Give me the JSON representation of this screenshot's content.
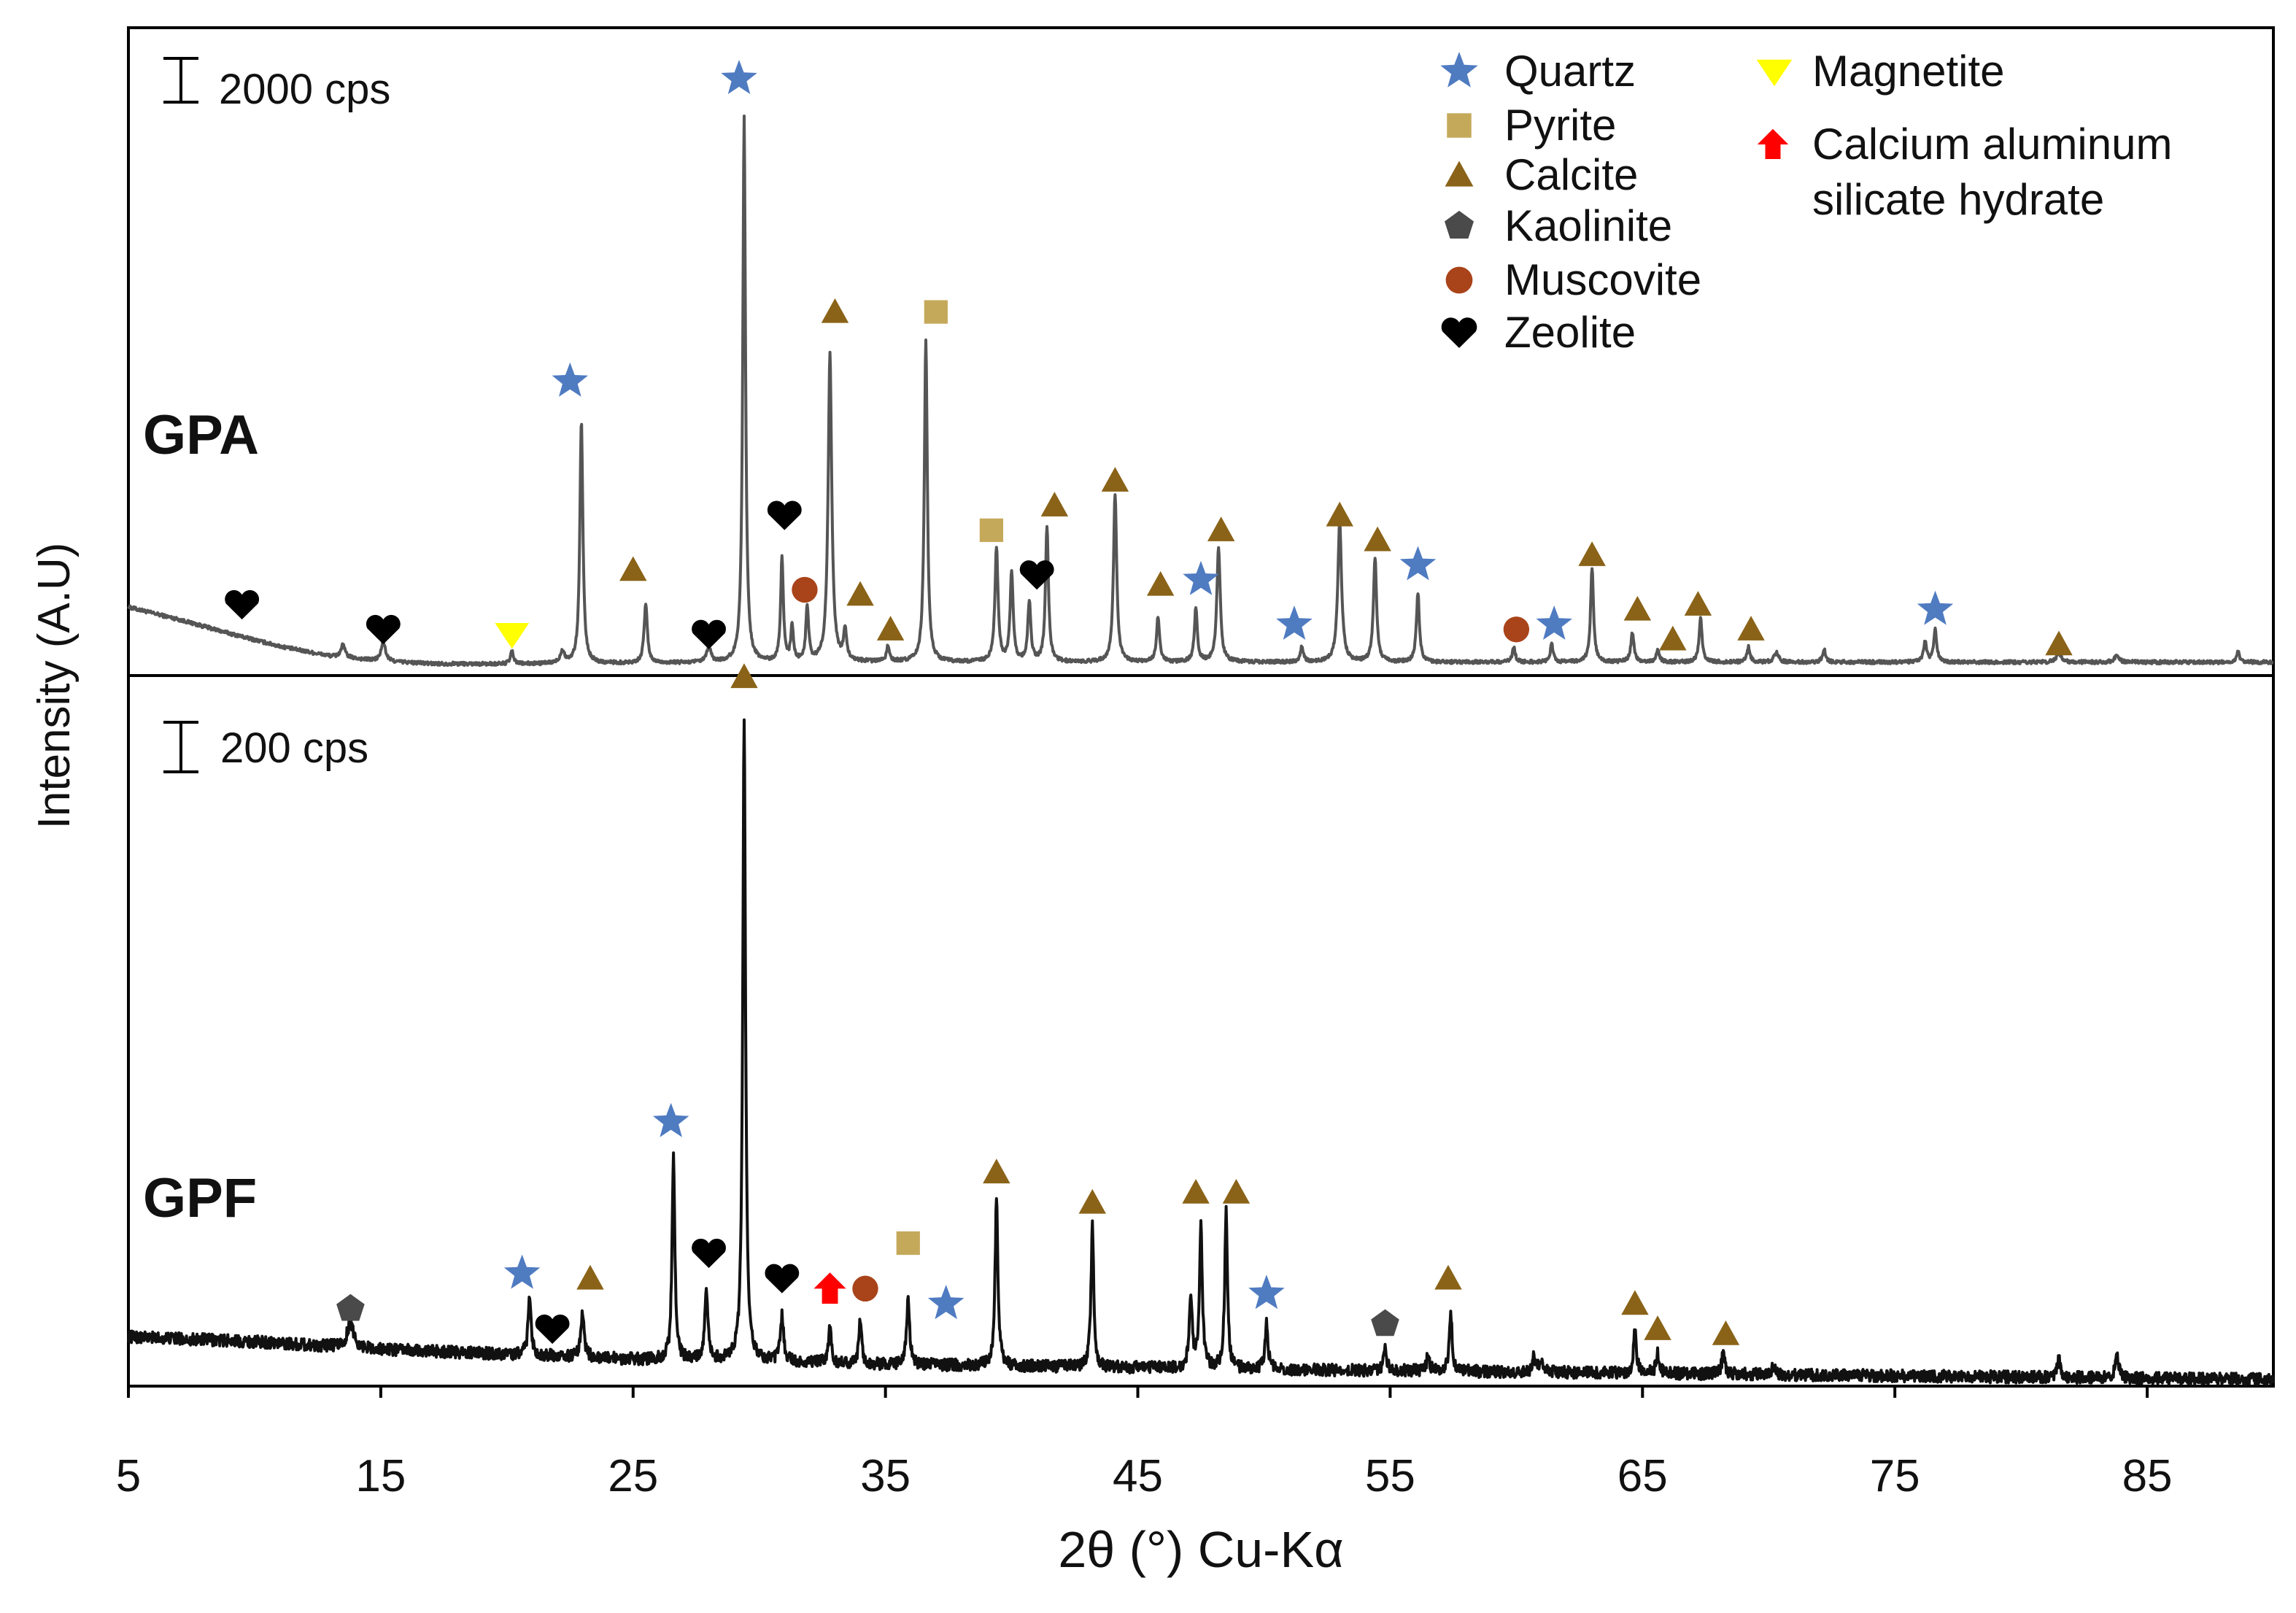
{
  "chart_data": {
    "type": "line",
    "title": "",
    "xlabel": "2θ (°) Cu-Kα",
    "ylabel": "Intensity (A.U)",
    "xlim": [
      5,
      90
    ],
    "x_ticks": [
      5,
      15,
      25,
      35,
      45,
      55,
      65,
      75,
      85
    ],
    "x_tick_labels": [
      "5",
      "15",
      "25",
      "35",
      "45",
      "55",
      "65",
      "75",
      "85"
    ],
    "phases": [
      {
        "key": "quartz",
        "name": "Quartz",
        "marker": "star",
        "color": "#4f7bc1"
      },
      {
        "key": "pyrite",
        "name": "Pyrite",
        "marker": "square",
        "color": "#c5a95a"
      },
      {
        "key": "calcite",
        "name": "Calcite",
        "marker": "triangle",
        "color": "#8a6318"
      },
      {
        "key": "kaolinite",
        "name": "Kaolinite",
        "marker": "pentagon",
        "color": "#4a4a4a"
      },
      {
        "key": "muscovite",
        "name": "Muscovite",
        "marker": "circle",
        "color": "#a9431a"
      },
      {
        "key": "zeolite",
        "name": "Zeolite",
        "marker": "heart",
        "color": "#000000"
      },
      {
        "key": "magnetite",
        "name": "Magnetite",
        "marker": "triangle-down",
        "color": "#ffff00"
      },
      {
        "key": "cash",
        "name": "Calcium aluminum silicate hydrate",
        "name_lines": [
          "Calcium aluminum",
          "silicate hydrate"
        ],
        "marker": "arrow-up",
        "color": "#ff0000"
      }
    ],
    "panels": [
      {
        "id": "gpa",
        "label": "GPA",
        "scale_bar": "2000 cps",
        "ylim": [
          0,
          130
        ],
        "line_color": "#555555",
        "baseline": [
          [
            5,
            13.5
          ],
          [
            7,
            11
          ],
          [
            9,
            8.2
          ],
          [
            11,
            5.6
          ],
          [
            13,
            3.6
          ],
          [
            15,
            2.6
          ],
          [
            17,
            2.1
          ],
          [
            20,
            2.0
          ],
          [
            25,
            2.2
          ],
          [
            35,
            2.4
          ],
          [
            50,
            2.4
          ],
          [
            70,
            2.4
          ],
          [
            90,
            2.4
          ]
        ],
        "peaks": [
          {
            "x": 13.5,
            "h": 2.5,
            "w": 0.2
          },
          {
            "x": 15.1,
            "h": 4.0,
            "w": 0.2
          },
          {
            "x": 20.2,
            "h": 2.5,
            "w": 0.15
          },
          {
            "x": 22.2,
            "h": 2.5,
            "w": 0.2
          },
          {
            "x": 22.95,
            "h": 49,
            "w": 0.14
          },
          {
            "x": 25.5,
            "h": 12,
            "w": 0.15
          },
          {
            "x": 28.0,
            "h": 3,
            "w": 0.2
          },
          {
            "x": 29.4,
            "h": 110,
            "w": 0.13
          },
          {
            "x": 30.9,
            "h": 21,
            "w": 0.13
          },
          {
            "x": 31.3,
            "h": 7,
            "w": 0.12
          },
          {
            "x": 31.9,
            "h": 11,
            "w": 0.13
          },
          {
            "x": 32.8,
            "h": 62,
            "w": 0.17
          },
          {
            "x": 33.4,
            "h": 6,
            "w": 0.15
          },
          {
            "x": 35.1,
            "h": 3,
            "w": 0.15
          },
          {
            "x": 36.6,
            "h": 65,
            "w": 0.14
          },
          {
            "x": 39.4,
            "h": 23,
            "w": 0.15
          },
          {
            "x": 40.0,
            "h": 18,
            "w": 0.14
          },
          {
            "x": 40.7,
            "h": 12,
            "w": 0.14
          },
          {
            "x": 41.4,
            "h": 27,
            "w": 0.14
          },
          {
            "x": 44.1,
            "h": 34,
            "w": 0.15
          },
          {
            "x": 45.8,
            "h": 9,
            "w": 0.14
          },
          {
            "x": 47.3,
            "h": 11,
            "w": 0.14
          },
          {
            "x": 48.2,
            "h": 23,
            "w": 0.16
          },
          {
            "x": 51.5,
            "h": 3,
            "w": 0.15
          },
          {
            "x": 53.0,
            "h": 28,
            "w": 0.18
          },
          {
            "x": 54.4,
            "h": 21,
            "w": 0.15
          },
          {
            "x": 56.1,
            "h": 14,
            "w": 0.14
          },
          {
            "x": 59.9,
            "h": 3,
            "w": 0.14
          },
          {
            "x": 61.4,
            "h": 3.5,
            "w": 0.14
          },
          {
            "x": 63.0,
            "h": 19,
            "w": 0.14
          },
          {
            "x": 64.6,
            "h": 6,
            "w": 0.15
          },
          {
            "x": 65.6,
            "h": 2.5,
            "w": 0.15
          },
          {
            "x": 67.3,
            "h": 9,
            "w": 0.14
          },
          {
            "x": 69.2,
            "h": 3,
            "w": 0.15
          },
          {
            "x": 70.3,
            "h": 2,
            "w": 0.2
          },
          {
            "x": 72.2,
            "h": 2.5,
            "w": 0.15
          },
          {
            "x": 76.2,
            "h": 4,
            "w": 0.15
          },
          {
            "x": 76.6,
            "h": 6.5,
            "w": 0.14
          },
          {
            "x": 81.5,
            "h": 2,
            "w": 0.2
          },
          {
            "x": 83.8,
            "h": 1.5,
            "w": 0.2
          },
          {
            "x": 88.6,
            "h": 2,
            "w": 0.15
          }
        ],
        "markers": [
          {
            "phase": "zeolite",
            "x": 9.5,
            "y": 14
          },
          {
            "phase": "zeolite",
            "x": 15.1,
            "y": 9
          },
          {
            "phase": "magnetite",
            "x": 20.2,
            "y": 8
          },
          {
            "phase": "quartz",
            "x": 22.5,
            "y": 59
          },
          {
            "phase": "calcite",
            "x": 25.0,
            "y": 21
          },
          {
            "phase": "zeolite",
            "x": 28.0,
            "y": 8
          },
          {
            "phase": "quartz",
            "x": 29.2,
            "y": 120
          },
          {
            "phase": "zeolite",
            "x": 31.0,
            "y": 32
          },
          {
            "phase": "muscovite",
            "x": 31.8,
            "y": 17
          },
          {
            "phase": "calcite",
            "x": 33.0,
            "y": 73
          },
          {
            "phase": "calcite",
            "x": 34.0,
            "y": 16
          },
          {
            "phase": "calcite",
            "x": 35.2,
            "y": 9
          },
          {
            "phase": "pyrite",
            "x": 37.0,
            "y": 73
          },
          {
            "phase": "pyrite",
            "x": 39.2,
            "y": 29
          },
          {
            "phase": "zeolite",
            "x": 41.0,
            "y": 20
          },
          {
            "phase": "calcite",
            "x": 41.7,
            "y": 34
          },
          {
            "phase": "calcite",
            "x": 44.1,
            "y": 39
          },
          {
            "phase": "calcite",
            "x": 45.9,
            "y": 18
          },
          {
            "phase": "quartz",
            "x": 47.5,
            "y": 19
          },
          {
            "phase": "calcite",
            "x": 48.3,
            "y": 29
          },
          {
            "phase": "quartz",
            "x": 51.2,
            "y": 10
          },
          {
            "phase": "calcite",
            "x": 53.0,
            "y": 32
          },
          {
            "phase": "calcite",
            "x": 54.5,
            "y": 27
          },
          {
            "phase": "quartz",
            "x": 56.1,
            "y": 22
          },
          {
            "phase": "muscovite",
            "x": 60.0,
            "y": 9
          },
          {
            "phase": "quartz",
            "x": 61.5,
            "y": 10
          },
          {
            "phase": "calcite",
            "x": 63.0,
            "y": 24
          },
          {
            "phase": "calcite",
            "x": 64.8,
            "y": 13
          },
          {
            "phase": "calcite",
            "x": 66.2,
            "y": 7
          },
          {
            "phase": "calcite",
            "x": 67.2,
            "y": 14
          },
          {
            "phase": "calcite",
            "x": 69.3,
            "y": 9
          },
          {
            "phase": "quartz",
            "x": 76.6,
            "y": 13
          },
          {
            "phase": "calcite",
            "x": 81.5,
            "y": 6
          }
        ]
      },
      {
        "id": "gpf",
        "label": "GPF",
        "scale_bar": "200 cps",
        "ylim": [
          0,
          140
        ],
        "line_color": "#111111",
        "baseline": [
          [
            5,
            9.5
          ],
          [
            10,
            8.5
          ],
          [
            15,
            7
          ],
          [
            20,
            6
          ],
          [
            25,
            5
          ],
          [
            35,
            4
          ],
          [
            50,
            3
          ],
          [
            70,
            2
          ],
          [
            90,
            1
          ]
        ],
        "peaks": [
          {
            "x": 13.8,
            "h": 5,
            "w": 0.3
          },
          {
            "x": 20.9,
            "h": 11,
            "w": 0.15
          },
          {
            "x": 23.0,
            "h": 9,
            "w": 0.15
          },
          {
            "x": 26.6,
            "h": 40,
            "w": 0.13
          },
          {
            "x": 27.9,
            "h": 14,
            "w": 0.14
          },
          {
            "x": 29.4,
            "h": 128,
            "w": 0.13
          },
          {
            "x": 30.9,
            "h": 9,
            "w": 0.15
          },
          {
            "x": 32.8,
            "h": 7,
            "w": 0.14
          },
          {
            "x": 34.0,
            "h": 9,
            "w": 0.13
          },
          {
            "x": 35.9,
            "h": 13,
            "w": 0.14
          },
          {
            "x": 39.4,
            "h": 34,
            "w": 0.13
          },
          {
            "x": 43.2,
            "h": 28,
            "w": 0.13
          },
          {
            "x": 47.1,
            "h": 14,
            "w": 0.14
          },
          {
            "x": 47.5,
            "h": 29,
            "w": 0.13
          },
          {
            "x": 48.5,
            "h": 31,
            "w": 0.13
          },
          {
            "x": 50.1,
            "h": 9,
            "w": 0.14
          },
          {
            "x": 54.8,
            "h": 4,
            "w": 0.15
          },
          {
            "x": 56.5,
            "h": 3,
            "w": 0.14
          },
          {
            "x": 57.4,
            "h": 12,
            "w": 0.13
          },
          {
            "x": 60.7,
            "h": 3,
            "w": 0.15
          },
          {
            "x": 61.0,
            "h": 3,
            "w": 0.15
          },
          {
            "x": 64.7,
            "h": 8,
            "w": 0.14
          },
          {
            "x": 65.6,
            "h": 4,
            "w": 0.14
          },
          {
            "x": 68.2,
            "h": 4,
            "w": 0.15
          },
          {
            "x": 70.2,
            "h": 2,
            "w": 0.15
          },
          {
            "x": 81.5,
            "h": 4,
            "w": 0.14
          },
          {
            "x": 83.8,
            "h": 5,
            "w": 0.15
          }
        ],
        "markers": [
          {
            "phase": "kaolinite",
            "x": 13.8,
            "y": 15
          },
          {
            "phase": "quartz",
            "x": 20.6,
            "y": 22
          },
          {
            "phase": "zeolite",
            "x": 21.8,
            "y": 11
          },
          {
            "phase": "calcite",
            "x": 23.3,
            "y": 21
          },
          {
            "phase": "quartz",
            "x": 26.5,
            "y": 52
          },
          {
            "phase": "zeolite",
            "x": 28.0,
            "y": 26
          },
          {
            "phase": "calcite",
            "x": 29.4,
            "y": 140
          },
          {
            "phase": "zeolite",
            "x": 30.9,
            "y": 21
          },
          {
            "phase": "cash",
            "x": 32.8,
            "y": 19
          },
          {
            "phase": "muscovite",
            "x": 34.2,
            "y": 19
          },
          {
            "phase": "pyrite",
            "x": 35.9,
            "y": 28
          },
          {
            "phase": "quartz",
            "x": 37.4,
            "y": 16
          },
          {
            "phase": "calcite",
            "x": 39.4,
            "y": 42
          },
          {
            "phase": "calcite",
            "x": 43.2,
            "y": 36
          },
          {
            "phase": "calcite",
            "x": 47.3,
            "y": 38
          },
          {
            "phase": "calcite",
            "x": 48.9,
            "y": 38
          },
          {
            "phase": "quartz",
            "x": 50.1,
            "y": 18
          },
          {
            "phase": "kaolinite",
            "x": 54.8,
            "y": 12
          },
          {
            "phase": "calcite",
            "x": 57.3,
            "y": 21
          },
          {
            "phase": "calcite",
            "x": 64.7,
            "y": 16
          },
          {
            "phase": "calcite",
            "x": 65.6,
            "y": 11
          },
          {
            "phase": "calcite",
            "x": 68.3,
            "y": 10
          }
        ]
      }
    ]
  }
}
